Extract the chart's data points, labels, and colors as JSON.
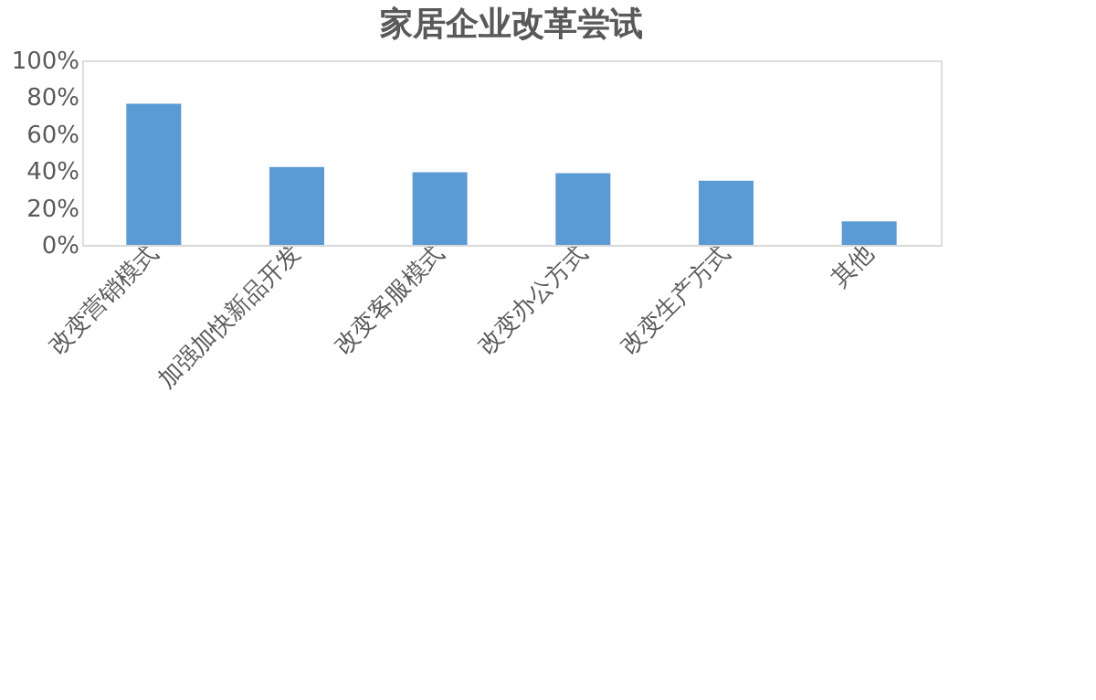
{
  "chart_data": {
    "type": "bar",
    "title": "家居企业改革尝试",
    "categories": [
      "改变营销模式",
      "加强加快新品开发",
      "改变客服模式",
      "改变办公方式",
      "改变生产方式",
      "其他"
    ],
    "values": [
      76.5,
      42.2,
      39.4,
      38.9,
      34.8,
      12.8
    ],
    "color": "#5b9bd5",
    "ylim": [
      0,
      100
    ],
    "yticks": [
      {
        "value": 0,
        "label": "0%"
      },
      {
        "value": 20,
        "label": "20%"
      },
      {
        "value": 40,
        "label": "40%"
      },
      {
        "value": 60,
        "label": "60%"
      },
      {
        "value": 80,
        "label": "80%"
      },
      {
        "value": 100,
        "label": "100%"
      }
    ],
    "grid": false
  }
}
